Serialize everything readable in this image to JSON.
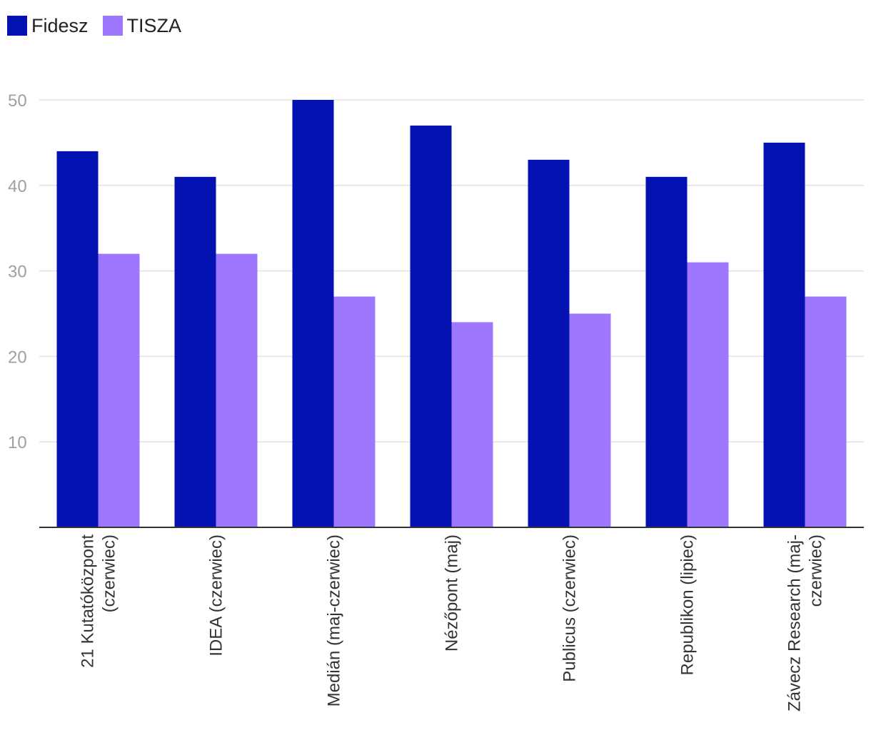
{
  "chart_data": {
    "type": "bar",
    "title": "",
    "xlabel": "",
    "ylabel": "",
    "ylim": [
      0,
      50
    ],
    "yticks": [
      10,
      20,
      30,
      40,
      50
    ],
    "grid": true,
    "legend_position": "top-left",
    "categories": [
      [
        "21 Kutatóközpont",
        "(czerwiec)"
      ],
      [
        "IDEA (czerwiec)"
      ],
      [
        "Medián (maj-czerwiec)"
      ],
      [
        "Nézőpont (maj)"
      ],
      [
        "Publicus (czerwiec)"
      ],
      [
        "Republikon (lipiec)"
      ],
      [
        "Závecz Research (maj-",
        "czerwiec)"
      ]
    ],
    "series": [
      {
        "name": "Fidesz",
        "color": "#0312b0",
        "values": [
          44,
          41,
          50,
          47,
          43,
          41,
          45
        ]
      },
      {
        "name": "TISZA",
        "color": "#9d78ff",
        "values": [
          32,
          32,
          27,
          24,
          25,
          31,
          27
        ]
      }
    ]
  }
}
